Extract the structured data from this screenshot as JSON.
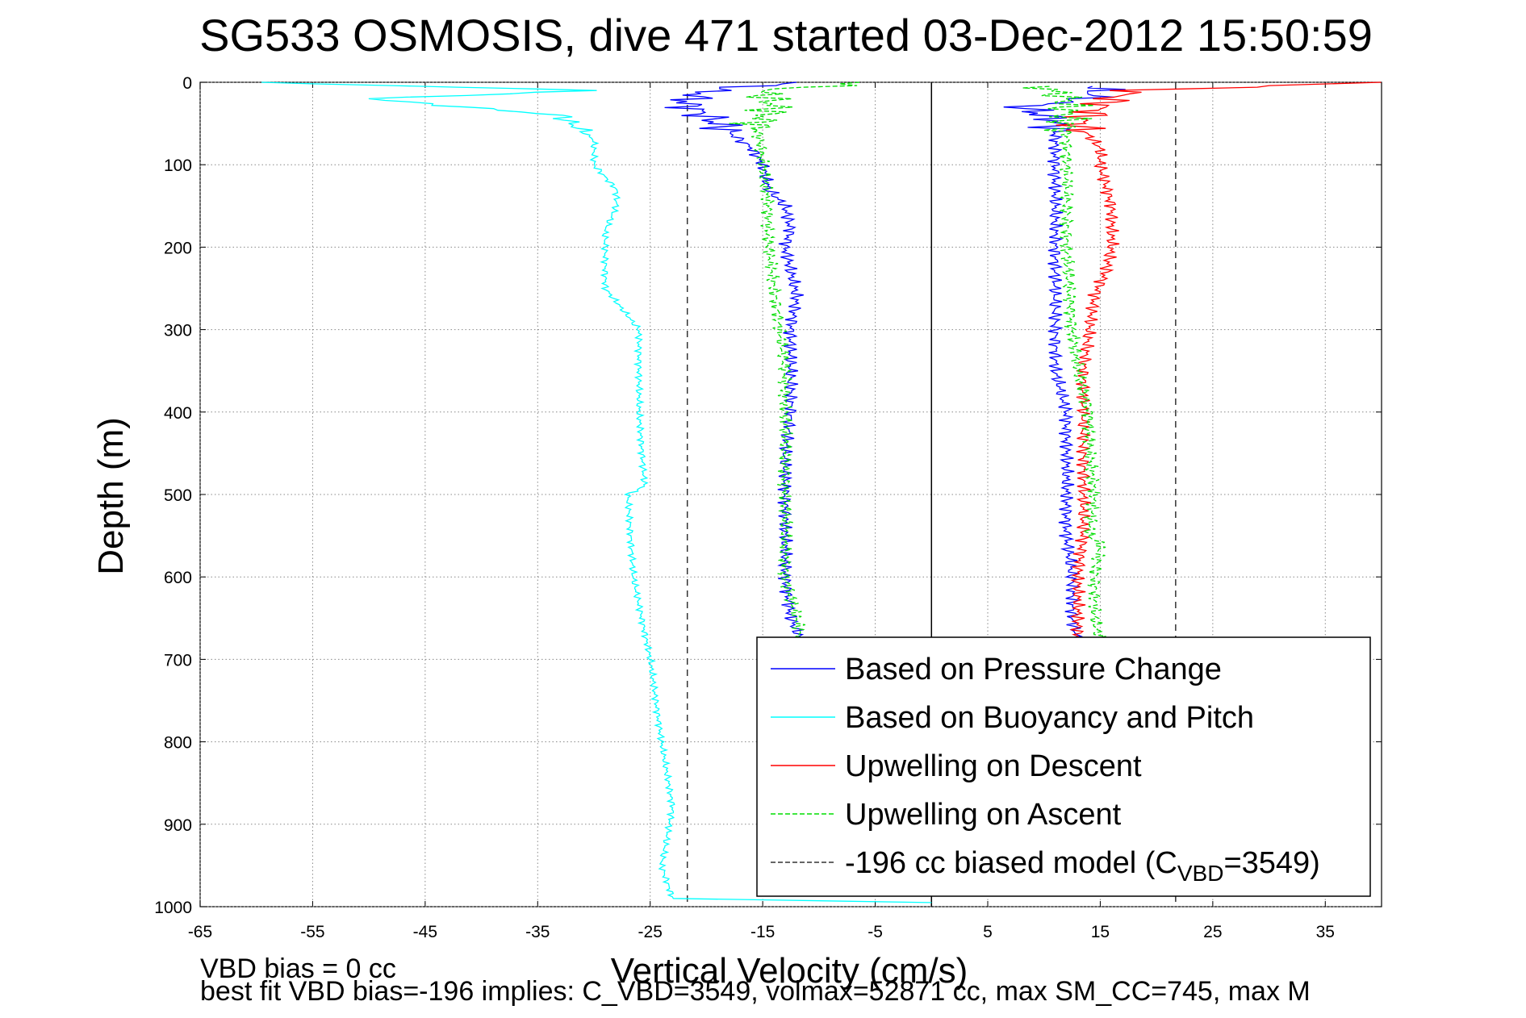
{
  "chart_data": {
    "type": "line",
    "title": "SG533 OSMOSIS, dive 471 started 03-Dec-2012 15:50:59",
    "xlabel": "Vertical Velocity (cm/s)",
    "ylabel": "Depth (m)",
    "xlim": [
      -65,
      40
    ],
    "ylim": [
      0,
      1000
    ],
    "y_reversed": true,
    "grid": true,
    "x_ticks": [
      "-65",
      "-55",
      "-45",
      "-35",
      "-25",
      "-15",
      "-5",
      "5",
      "15",
      "25",
      "35"
    ],
    "y_ticks": [
      "0",
      "100",
      "200",
      "300",
      "400",
      "500",
      "600",
      "700",
      "800",
      "900",
      "1000"
    ],
    "legend_position": "bottom-right",
    "series": [
      {
        "name": "Based on Pressure Change",
        "color": "#0000ff",
        "style": "solid",
        "depth": [
          0,
          10,
          25,
          50,
          80,
          100,
          130,
          150,
          180,
          200,
          230,
          260,
          300,
          350,
          400,
          450,
          500,
          550,
          600,
          650,
          680
        ],
        "velocity": [
          -12,
          -20,
          -22,
          -19,
          -16,
          -15,
          -14.5,
          -13,
          -12.5,
          -13,
          -12.5,
          -12,
          -12.5,
          -12.5,
          -12.5,
          -13,
          -13,
          -13,
          -13,
          -12.5,
          -11.5
        ]
      },
      {
        "name": "Based on Pressure Change",
        "color": "#0000ff",
        "style": "solid",
        "depth": [
          5,
          20,
          30,
          45,
          80,
          120,
          160,
          200,
          230,
          260,
          300,
          350,
          400,
          450,
          500,
          550,
          600,
          650,
          680
        ],
        "velocity": [
          15,
          14,
          8,
          11,
          11,
          11,
          11,
          11,
          11,
          11,
          11,
          11,
          12,
          12,
          12,
          12,
          12.5,
          12.5,
          13
        ]
      },
      {
        "name": "Based on Buoyancy and Pitch",
        "color": "#00ffff",
        "style": "solid",
        "depth": [
          0,
          10,
          20,
          40,
          70,
          100,
          130,
          150,
          180,
          200,
          250,
          300,
          400,
          490,
          500,
          600,
          700,
          800,
          880,
          950,
          990,
          995
        ],
        "velocity": [
          -60,
          -30,
          -50,
          -33,
          -30,
          -30,
          -28,
          -28,
          -29,
          -29,
          -29,
          -26,
          -26,
          -25.5,
          -27,
          -26.5,
          -25,
          -24,
          -23,
          -24,
          -23,
          0
        ]
      },
      {
        "name": "Upwelling on Descent",
        "color": "#ff0000",
        "style": "solid",
        "depth": [
          0,
          10,
          20,
          30,
          50,
          80,
          100,
          150,
          200,
          230,
          260,
          300,
          350,
          400,
          450,
          500,
          550,
          600,
          650,
          680
        ],
        "velocity": [
          40,
          18,
          16,
          15,
          13,
          15,
          15,
          16,
          16,
          15.5,
          14.5,
          14,
          13.5,
          13.5,
          13.5,
          13.5,
          13.5,
          13,
          13,
          13
        ]
      },
      {
        "name": "Upwelling on Ascent",
        "color": "#00dd00",
        "style": "dashed",
        "depth": [
          0,
          10,
          30,
          50,
          100,
          150,
          160,
          200,
          250,
          300,
          350,
          400,
          450,
          500,
          550,
          600,
          650,
          680
        ],
        "velocity": [
          -5,
          -15,
          -14,
          -15.5,
          -15,
          -14.5,
          -14.5,
          -14.5,
          -14,
          -13.5,
          -13,
          -13,
          -13,
          -13,
          -13,
          -13,
          -12,
          -11.5
        ]
      },
      {
        "name": "Upwelling on Ascent",
        "color": "#00dd00",
        "style": "dashed",
        "depth": [
          5,
          20,
          40,
          80,
          100,
          200,
          300,
          350,
          400,
          450,
          500,
          550,
          560,
          600,
          650,
          680
        ],
        "velocity": [
          10,
          12,
          12,
          12,
          12,
          12,
          12.5,
          13,
          14,
          14,
          14.5,
          14,
          15,
          14.5,
          14.5,
          15
        ]
      }
    ],
    "reference_lines": [
      {
        "name": "-196 cc biased model (C",
        "name_sub": "VBD",
        "name_tail": "=3549)",
        "color": "#333333",
        "style": "dashed",
        "x": [
          -21.7,
          21.7
        ]
      },
      {
        "name": "",
        "color": "#000000",
        "style": "solid",
        "x": [
          0
        ]
      }
    ],
    "annotations": [
      "VBD bias = 0 cc",
      "best fit VBD bias=-196 implies: C_VBD=3549, volmax=52871 cc, max SM_CC=745, max M"
    ]
  }
}
